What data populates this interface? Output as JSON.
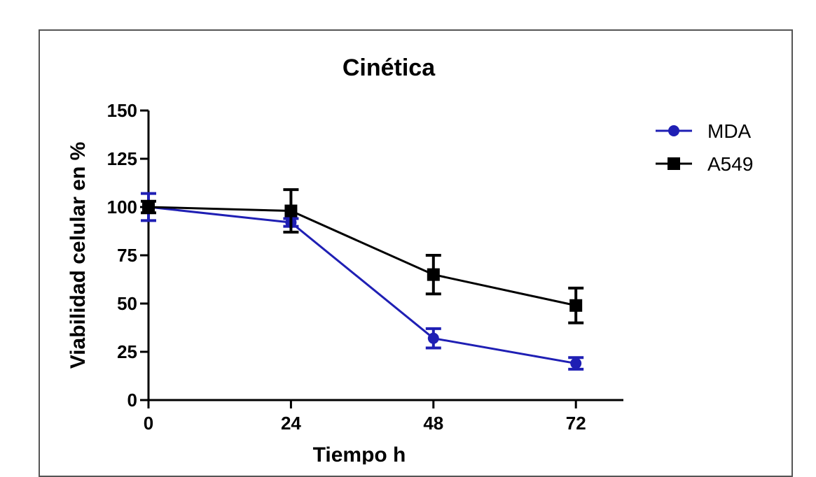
{
  "chart_data": {
    "type": "line",
    "title": "Cinética",
    "xlabel": "Tiempo h",
    "ylabel": "Viabilidad celular en %",
    "x": [
      0,
      24,
      48,
      72
    ],
    "x_ticks": [
      "0",
      "24",
      "48",
      "72"
    ],
    "y_ticks": [
      "0",
      "25",
      "50",
      "75",
      "100",
      "125",
      "150"
    ],
    "ylim": [
      0,
      150
    ],
    "xlim": [
      0,
      80
    ],
    "grid": false,
    "legend_position": "top-right",
    "series": [
      {
        "name": "MDA",
        "marker": "circle",
        "color": "#1f1fb4",
        "values": [
          100,
          92,
          32,
          19
        ],
        "errors": [
          7,
          2,
          5,
          3
        ]
      },
      {
        "name": "A549",
        "marker": "square",
        "color": "#000000",
        "values": [
          100,
          98,
          65,
          49
        ],
        "errors": [
          3,
          11,
          10,
          9
        ]
      }
    ]
  }
}
